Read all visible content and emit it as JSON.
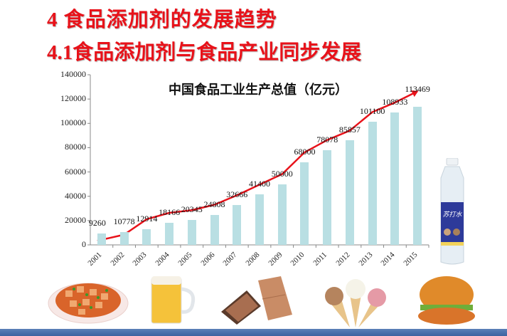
{
  "slide": {
    "heading": "4 食品添加剂的发展趋势",
    "subheading": "4.1食品添加剂与食品产业同步发展",
    "illustrations": [
      "mapo-tofu-icon",
      "beer-mug-icon",
      "chocolate-icon",
      "ice-cream-cones-icon",
      "hamburger-icon",
      "soda-water-bottle-icon"
    ],
    "bottle_label": "苏打水"
  },
  "colors": {
    "title": "#e8121a",
    "bar": "#b9dfe3",
    "trend": "#e8121a",
    "footer": "#4a70ab"
  },
  "chart_data": {
    "type": "bar",
    "title": "中国食品工业生产总值（亿元）",
    "xlabel": "",
    "ylabel": "",
    "categories": [
      "2001",
      "2002",
      "2003",
      "2004",
      "2005",
      "2006",
      "2007",
      "2008",
      "2009",
      "2010",
      "2011",
      "2012",
      "2013",
      "2014",
      "2015"
    ],
    "values": [
      9260,
      10778,
      12914,
      18166,
      20345,
      24808,
      32666,
      41400,
      50000,
      68000,
      78078,
      85857,
      101100,
      108933,
      113469
    ],
    "ylim": [
      0,
      140000
    ],
    "yticks": [
      "0",
      "20000",
      "40000",
      "60000",
      "80000",
      "100000",
      "120000",
      "140000"
    ],
    "grid": false,
    "legend": null,
    "annotations": [
      "red upward trend arrow across bars"
    ]
  }
}
